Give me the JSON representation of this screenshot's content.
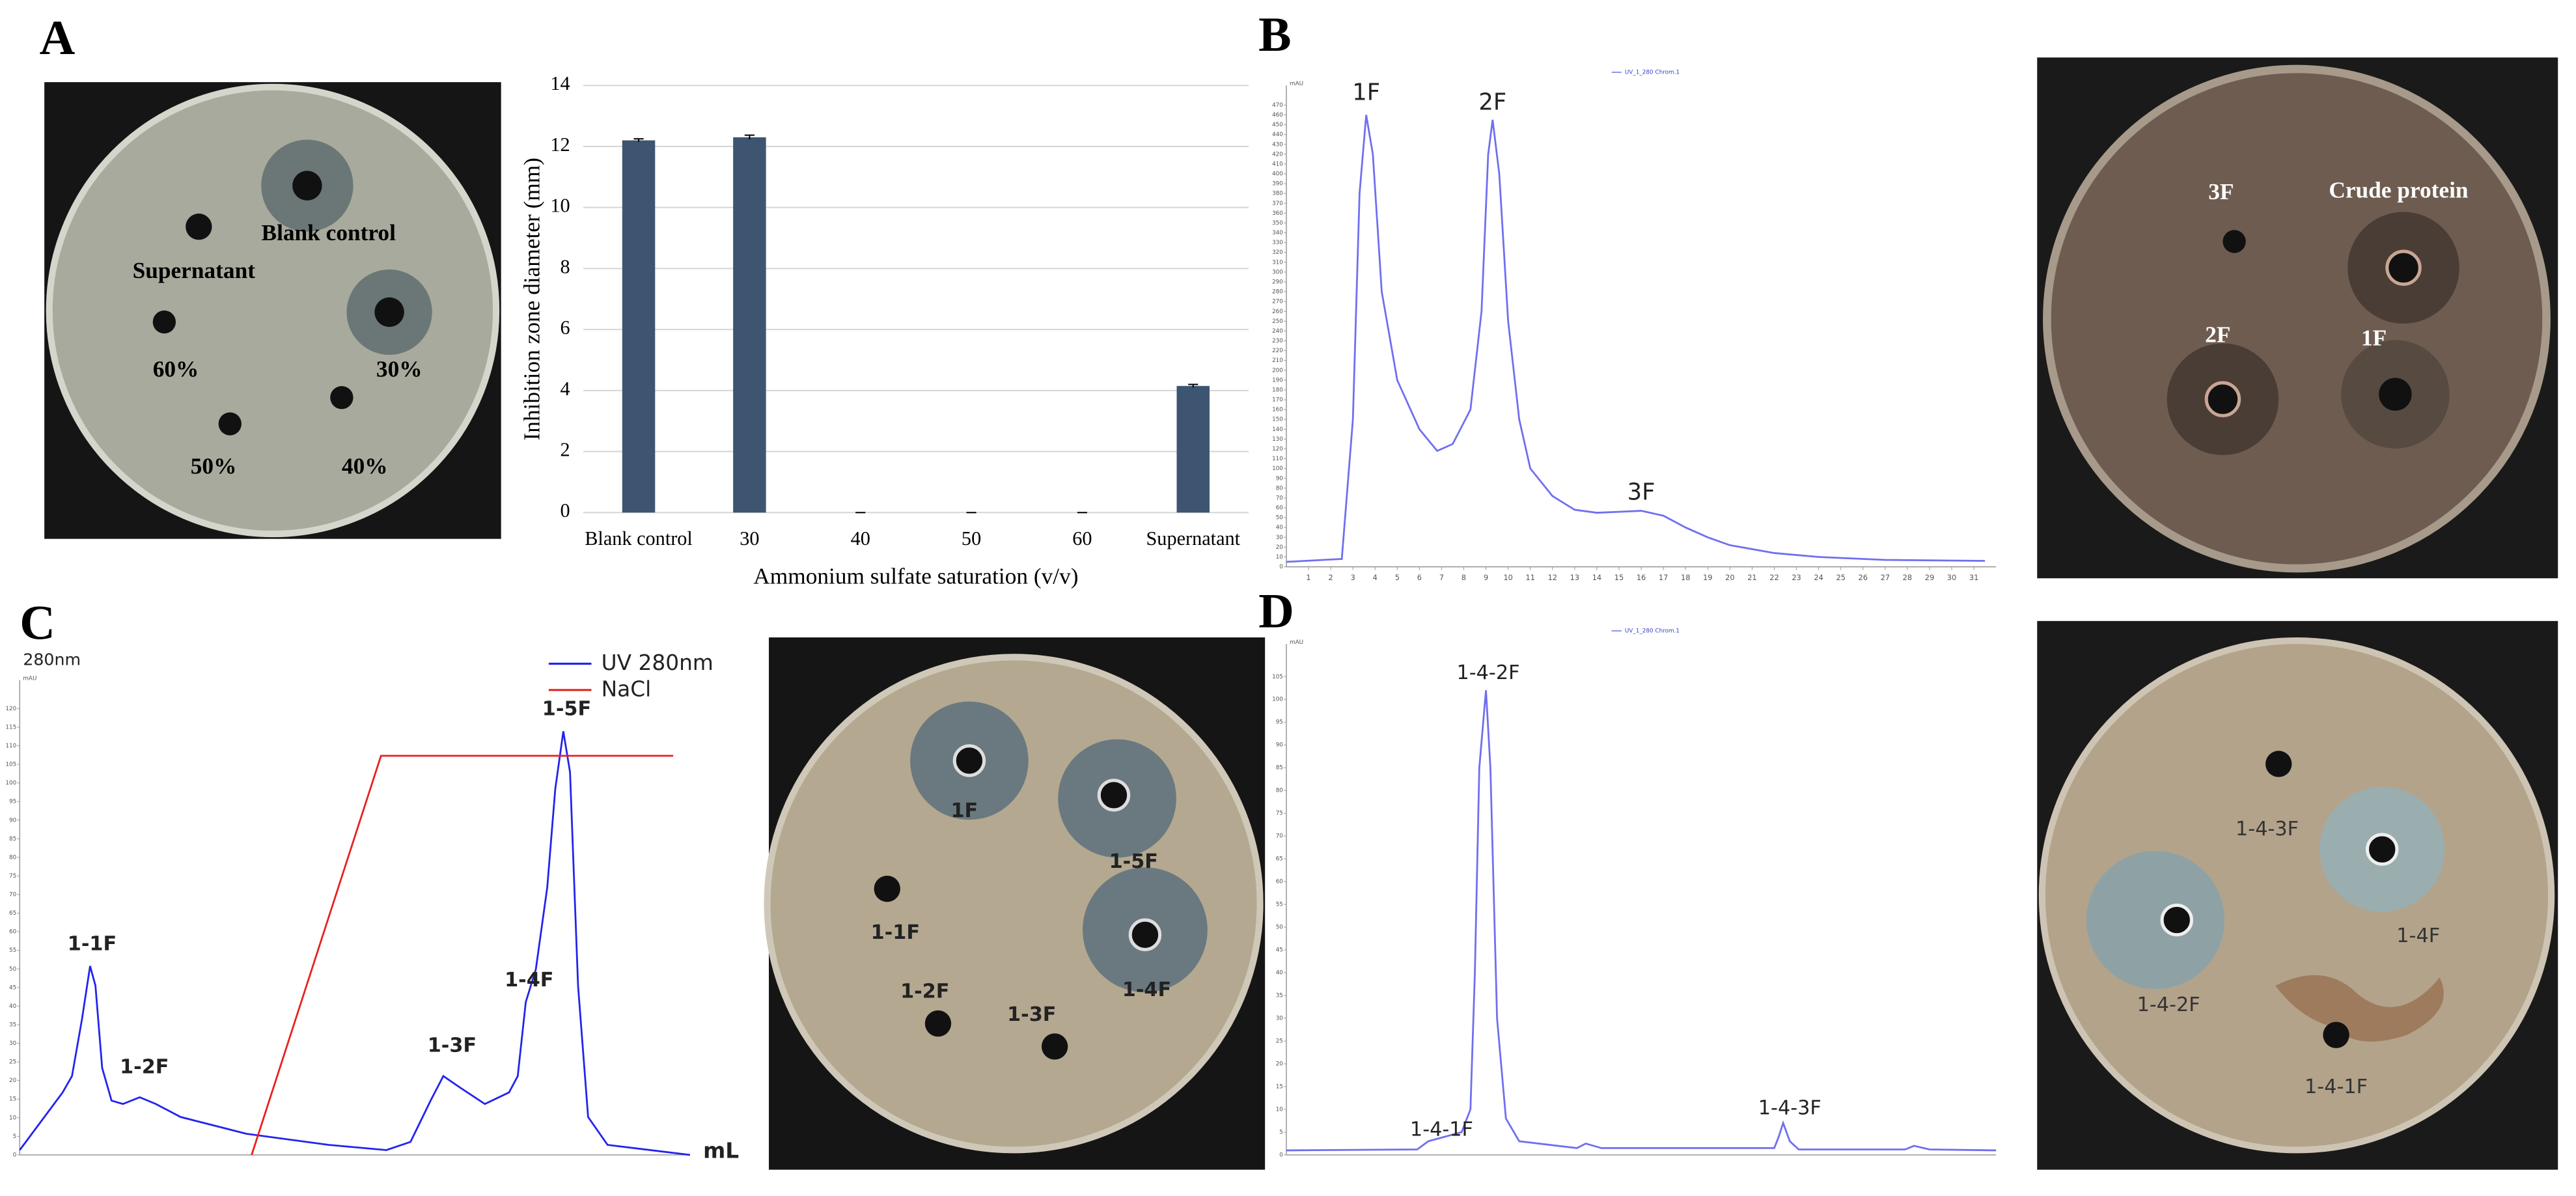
{
  "panel_labels": [
    "A",
    "B",
    "C",
    "D"
  ],
  "photos": [
    {
      "labels": [
        "Blank control",
        "Supernatant",
        "60%",
        "30%",
        "50%",
        "40%"
      ]
    },
    {
      "labels": [
        "3F",
        "Crude protein",
        "2F",
        "1F"
      ]
    },
    {
      "labels": [
        "1F",
        "1-5F",
        "1-1F",
        "1-4F",
        "1-2F",
        "1-3F"
      ]
    },
    {
      "labels": [
        "1-4-3F",
        "1-4F",
        "1-4-2F",
        "1-4-1F"
      ]
    }
  ],
  "chart_data": [
    {
      "type": "bar",
      "categories": [
        "Blank control",
        "30",
        "40",
        "50",
        "60",
        "Supernatant"
      ],
      "values": [
        12.2,
        12.3,
        0,
        0,
        0,
        4.15
      ],
      "errors": [
        0.05,
        0.07,
        0,
        0,
        0,
        0.05
      ],
      "color": "#3d5570",
      "x_label": "Ammonium sulfate saturation (v/v)",
      "y_label": "Inhibition zone diameter (mm)",
      "ylim": [
        0,
        14
      ],
      "yticks": [
        0,
        2,
        4,
        6,
        8,
        10,
        12,
        14
      ],
      "grid": true
    },
    {
      "type": "line",
      "y_label": "mAU",
      "legend": "upper center",
      "xlim": [
        0,
        32
      ],
      "ylim": [
        0,
        480
      ],
      "xticks": [
        1,
        2,
        3,
        4,
        5,
        6,
        7,
        8,
        9,
        10,
        11,
        12,
        13,
        14,
        15,
        16,
        17,
        18,
        19,
        20,
        21,
        22,
        23,
        24,
        25,
        26,
        27,
        28,
        29,
        30,
        31
      ],
      "yticks": [
        0,
        10,
        20,
        30,
        40,
        50,
        60,
        70,
        80,
        90,
        100,
        110,
        120,
        130,
        140,
        150,
        160,
        170,
        180,
        190,
        200,
        210,
        220,
        230,
        240,
        250,
        260,
        270,
        280,
        290,
        300,
        310,
        320,
        330,
        340,
        350,
        360,
        370,
        380,
        390,
        400,
        410,
        420,
        430,
        440,
        450,
        460,
        470
      ],
      "series": [
        {
          "name": "UV_1_280 Chrom.1",
          "color": "#6f6ff0",
          "x": [
            0,
            2.5,
            3.0,
            3.3,
            3.6,
            3.9,
            4.3,
            5,
            6,
            6.8,
            7.5,
            8.3,
            8.8,
            9.1,
            9.3,
            9.6,
            10,
            10.5,
            11,
            12,
            13,
            14,
            15,
            16,
            17,
            18,
            19,
            20,
            22,
            24,
            27,
            31.5
          ],
          "values": [
            5,
            8,
            150,
            380,
            460,
            420,
            280,
            190,
            140,
            118,
            125,
            160,
            260,
            420,
            455,
            400,
            250,
            150,
            100,
            72,
            58,
            55,
            56,
            57,
            52,
            40,
            30,
            22,
            14,
            10,
            7,
            6
          ]
        }
      ],
      "annotations": [
        {
          "text": "1F",
          "x": 3.6,
          "y": 482
        },
        {
          "text": "2F",
          "x": 9.3,
          "y": 472
        },
        {
          "text": "3F",
          "x": 16,
          "y": 75
        }
      ]
    },
    {
      "type": "line",
      "subtitle": "280nm",
      "y_label": "mAU",
      "x_label": "mL",
      "legend": "upper right",
      "xlim": [
        0,
        100
      ],
      "ylim": [
        0,
        125
      ],
      "yticks": [
        0,
        5,
        10,
        15,
        20,
        25,
        30,
        35,
        40,
        45,
        50,
        55,
        60,
        65,
        70,
        75,
        80,
        85,
        90,
        95,
        100,
        105,
        110,
        115,
        120
      ],
      "series": [
        {
          "name": "UV 280nm",
          "color": "#2323ee",
          "x": [
            0,
            6.4,
            7.8,
            9.3,
            10.5,
            11.3,
            12.3,
            13.7,
            15.4,
            17.9,
            20.3,
            24.0,
            33.8,
            46.1,
            54.7,
            58.3,
            61.3,
            63.2,
            65.7,
            69.4,
            73.0,
            74.3,
            75.5,
            77.0,
            78.7,
            79.9,
            81.1,
            82.1,
            83.3,
            84.8,
            87.7,
            100
          ],
          "values": [
            1.3,
            16.8,
            21.2,
            36.6,
            50.8,
            45.5,
            23.4,
            14.6,
            13.7,
            15.5,
            13.7,
            10.2,
            5.7,
            2.7,
            1.3,
            3.5,
            14.6,
            21.2,
            18.1,
            13.7,
            16.8,
            21.2,
            41.1,
            49.9,
            71.9,
            98.4,
            113.9,
            102.9,
            45.5,
            10.2,
            2.7,
            0
          ]
        },
        {
          "name": "NaCl",
          "color": "#e82020",
          "x": [
            34.6,
            53.9,
            97.5
          ],
          "values": [
            0,
            107.3,
            107.3
          ]
        }
      ],
      "annotations": [
        {
          "text": "1-1F",
          "x": 10.8,
          "y": 56.5
        },
        {
          "text": "1-2F",
          "x": 18.6,
          "y": 23.4
        },
        {
          "text": "1-3F",
          "x": 64.5,
          "y": 29.2
        },
        {
          "text": "1-4F",
          "x": 76,
          "y": 46.8
        },
        {
          "text": "1-5F",
          "x": 81.6,
          "y": 119.7
        }
      ]
    },
    {
      "type": "line",
      "y_label": "mAU",
      "legend": "upper center",
      "xlim": [
        0,
        32
      ],
      "ylim": [
        0,
        110
      ],
      "yticks": [
        0,
        5,
        10,
        15,
        20,
        25,
        30,
        35,
        40,
        45,
        50,
        55,
        60,
        65,
        70,
        75,
        80,
        85,
        90,
        95,
        100,
        105
      ],
      "series": [
        {
          "name": "UV_1_280 Chrom.1",
          "color": "#6f6ff0",
          "x": [
            0,
            5.9,
            6.4,
            7.9,
            8.3,
            8.5,
            8.7,
            9.0,
            9.2,
            9.5,
            9.9,
            10.5,
            13.1,
            13.5,
            14.2,
            22.0,
            22.2,
            22.4,
            22.7,
            23.1,
            27.9,
            28.3,
            29.0,
            32
          ],
          "values": [
            1,
            1.2,
            3,
            5,
            10,
            40,
            85,
            102,
            85,
            30,
            8,
            3,
            1.5,
            2.5,
            1.5,
            1.5,
            4,
            7,
            3,
            1.2,
            1.2,
            2,
            1.2,
            1
          ]
        }
      ],
      "annotations": [
        {
          "text": "1-4-2F",
          "x": 9.1,
          "y": 105.7
        },
        {
          "text": "1-4-1F",
          "x": 7.0,
          "y": 5.4
        },
        {
          "text": "1-4-3F",
          "x": 22.7,
          "y": 10.1
        }
      ]
    }
  ]
}
